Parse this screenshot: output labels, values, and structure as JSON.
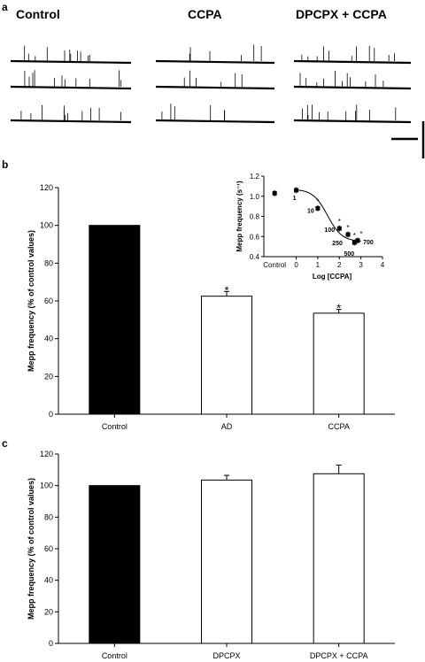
{
  "panel_a": {
    "letter": "a",
    "conditions": [
      "Control",
      "CCPA",
      "DPCPX + CCPA"
    ],
    "trace_rows": 3
  },
  "panel_b": {
    "letter": "b"
  },
  "panel_c": {
    "letter": "c"
  },
  "chart_data": [
    {
      "id": "b-main",
      "type": "bar",
      "ylabel": "Mepp frequency (% of control values)",
      "categories": [
        "Control",
        "AD",
        "CCPA"
      ],
      "values": [
        100,
        62.5,
        53.5
      ],
      "errors": [
        0,
        2.5,
        2
      ],
      "fills": [
        "#000000",
        "#ffffff",
        "#ffffff"
      ],
      "significance": [
        "",
        "*",
        "*"
      ],
      "ylim": [
        0,
        120
      ],
      "yticks": [
        0,
        20,
        40,
        60,
        80,
        100,
        120
      ],
      "grid": false
    },
    {
      "id": "b-inset",
      "type": "scatter",
      "xlabel": "Log [CCPA]",
      "ylabel": "Mepp frequency (s⁻¹)",
      "xlim": [
        -1.5,
        4
      ],
      "ylim": [
        0.4,
        1.2
      ],
      "xticks": [
        0,
        1,
        2,
        3,
        4
      ],
      "xtick_control_label": "Control",
      "yticks": [
        0.4,
        0.6,
        0.8,
        1.0,
        1.2
      ],
      "control_point": {
        "x": -1,
        "y": 1.03,
        "err": 0.03
      },
      "points": [
        {
          "x": 0,
          "y": 1.06,
          "err": 0.03,
          "label": "1",
          "sig": ""
        },
        {
          "x": 1,
          "y": 0.88,
          "err": 0.03,
          "label": "10",
          "sig": "*"
        },
        {
          "x": 2,
          "y": 0.68,
          "err": 0.03,
          "label": "100",
          "sig": "*"
        },
        {
          "x": 2.4,
          "y": 0.62,
          "err": 0.03,
          "label": "250",
          "sig": "*"
        },
        {
          "x": 2.7,
          "y": 0.54,
          "err": 0.03,
          "label": "500",
          "sig": "*"
        },
        {
          "x": 2.85,
          "y": 0.56,
          "err": 0.03,
          "label": "700",
          "sig": "*"
        }
      ],
      "grid": false
    },
    {
      "id": "c-main",
      "type": "bar",
      "ylabel": "Mepp frequency (% of control values)",
      "categories": [
        "Control",
        "DPCPX",
        "DPCPX + CCPA"
      ],
      "values": [
        100,
        103.5,
        107.5
      ],
      "errors": [
        0,
        3,
        5.5
      ],
      "fills": [
        "#000000",
        "#ffffff",
        "#ffffff"
      ],
      "significance": [
        "",
        "",
        ""
      ],
      "ylim": [
        0,
        120
      ],
      "yticks": [
        0,
        20,
        40,
        60,
        80,
        100,
        120
      ],
      "grid": false
    }
  ]
}
